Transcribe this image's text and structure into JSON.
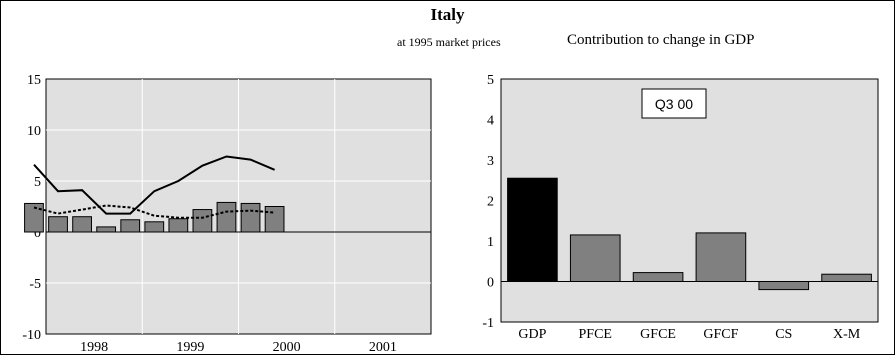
{
  "header": {
    "title": "Italy",
    "subtitle_left": "at 1995 market prices",
    "subtitle_right": "Contribution to change in GDP"
  },
  "colors": {
    "plot_bg": "#e0e0e0",
    "bar_fill": "#808080",
    "gdp_bar_fill": "#000000",
    "line": "#000000"
  },
  "chart_data": [
    {
      "type": "bar",
      "title": "",
      "xlabel": "",
      "ylabel": "",
      "ylim": [
        -10,
        15
      ],
      "yticks": [
        -10,
        -5,
        0,
        5,
        10,
        15
      ],
      "year_labels": [
        "1998",
        "1999",
        "2000",
        "2001"
      ],
      "grid": true,
      "quarters": [
        "1997Q4",
        "1998Q1",
        "1998Q2",
        "1998Q3",
        "1998Q4",
        "1999Q1",
        "1999Q2",
        "1999Q3",
        "1999Q4",
        "2000Q1",
        "2000Q2",
        "2000Q3"
      ],
      "series": [
        {
          "kind": "bar",
          "values": [
            2.8,
            1.5,
            1.5,
            0.5,
            1.2,
            1.0,
            1.3,
            2.2,
            2.9,
            2.8,
            2.5,
            null
          ]
        },
        {
          "kind": "line",
          "style": "solid",
          "values": [
            6.6,
            4.0,
            4.1,
            1.8,
            1.8,
            4.0,
            5.0,
            6.5,
            7.4,
            7.1,
            6.1,
            null
          ]
        },
        {
          "kind": "line",
          "style": "dashed",
          "values": [
            2.4,
            1.8,
            2.2,
            2.6,
            2.4,
            1.6,
            1.4,
            1.4,
            2.0,
            2.1,
            1.9,
            null
          ]
        }
      ]
    },
    {
      "type": "bar",
      "title": "",
      "xlabel": "",
      "ylabel": "",
      "annotation": "Q3 00",
      "ylim": [
        -1,
        5
      ],
      "yticks": [
        -1,
        0,
        1,
        2,
        3,
        4,
        5
      ],
      "grid": false,
      "categories": [
        "GDP",
        "PFCE",
        "GFCE",
        "GFCF",
        "CS",
        "X-M"
      ],
      "values": [
        2.55,
        1.15,
        0.22,
        1.2,
        -0.2,
        0.18
      ]
    }
  ]
}
